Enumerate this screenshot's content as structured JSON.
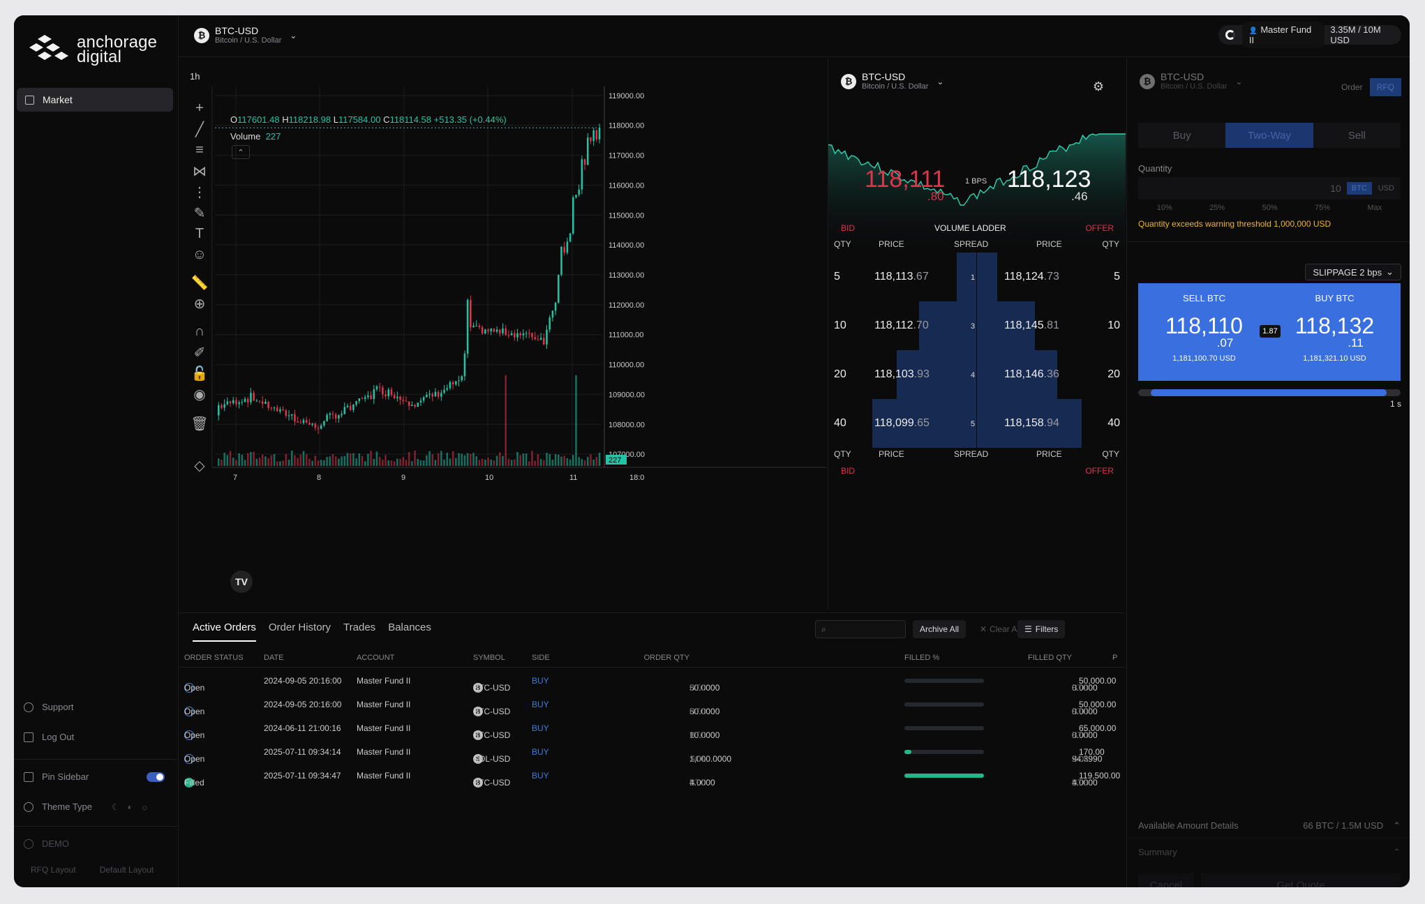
{
  "brand": {
    "name_line1": "anchorage",
    "name_line2": "digital"
  },
  "sidebar": {
    "market": "Market",
    "support": "Support",
    "logout": "Log Out",
    "pin": "Pin Sidebar",
    "theme": "Theme Type",
    "demo": "DEMO",
    "rfq_layout": "RFQ Layout",
    "default_layout": "Default Layout"
  },
  "topbar": {
    "symbol": "BTC-USD",
    "subtitle": "Bitcoin / U.S. Dollar",
    "account": "Master Fund II",
    "limit": "3.35M / 10M USD"
  },
  "chart": {
    "timeframe": "1h",
    "ohlc": {
      "o": "117601.48",
      "h": "118218.98",
      "l": "117584.00",
      "c": "118114.58",
      "chg": "+513.35 (+0.44%)"
    },
    "volume_label": "Volume",
    "volume_value": "227",
    "last_volume_badge": "227"
  },
  "chart_data": {
    "type": "candlestick",
    "xlabel": "",
    "ylabel": "",
    "x_ticks": [
      "7",
      "8",
      "9",
      "10",
      "11",
      "18:0"
    ],
    "y_ticks": [
      "119000.00",
      "118000.00",
      "117000.00",
      "116000.00",
      "115000.00",
      "114000.00",
      "113000.00",
      "112000.00",
      "111000.00",
      "110000.00",
      "109000.00",
      "108000.00",
      "107000.00"
    ],
    "ylim": [
      106700,
      119300
    ],
    "segments": [
      {
        "from": 108600,
        "to": 108900,
        "n": 12
      },
      {
        "from": 108900,
        "to": 107900,
        "n": 22
      },
      {
        "from": 107900,
        "to": 108600,
        "n": 12
      },
      {
        "from": 108600,
        "to": 109200,
        "n": 10
      },
      {
        "from": 109200,
        "to": 108700,
        "n": 12
      },
      {
        "from": 108700,
        "to": 109500,
        "n": 16
      },
      {
        "from": 109500,
        "to": 111200,
        "n": 2
      },
      {
        "from": 111200,
        "to": 111000,
        "n": 20
      },
      {
        "from": 111000,
        "to": 110800,
        "n": 6
      },
      {
        "from": 110800,
        "to": 113500,
        "n": 6
      },
      {
        "from": 113500,
        "to": 117000,
        "n": 8
      },
      {
        "from": 117000,
        "to": 118100,
        "n": 5
      }
    ],
    "volume_spikes": [
      {
        "i": 98,
        "v": 1.0
      },
      {
        "i": 122,
        "v": 1.0
      },
      {
        "i": 134,
        "v": 0.8
      },
      {
        "i": 148,
        "v": 0.75
      },
      {
        "i": 152,
        "v": 0.35
      },
      {
        "i": 164,
        "v": 0.3
      }
    ]
  },
  "ladder": {
    "symbol": "BTC-USD",
    "subtitle": "Bitcoin / U.S. Dollar",
    "best_bid": "118,111",
    "best_bid_frac": ".80",
    "best_offer": "118,123",
    "best_offer_frac": ".46",
    "bps": "1 BPS",
    "title": "VOLUME LADDER",
    "bid": "BID",
    "offer": "OFFER",
    "cols": {
      "qty": "QTY",
      "price": "PRICE",
      "spread": "SPREAD"
    },
    "rows": [
      {
        "qty": "5",
        "bid": "118,113",
        "bid_frac": ".67",
        "spread": "1",
        "offer": "118,124",
        "offer_frac": ".73",
        "oqty": "5",
        "w": 0.18
      },
      {
        "qty": "10",
        "bid": "118,112",
        "bid_frac": ".70",
        "spread": "3",
        "offer": "118,145",
        "offer_frac": ".81",
        "oqty": "10",
        "w": 0.52
      },
      {
        "qty": "20",
        "bid": "118,103",
        "bid_frac": ".93",
        "spread": "4",
        "offer": "118,146",
        "offer_frac": ".36",
        "oqty": "20",
        "w": 0.72
      },
      {
        "qty": "40",
        "bid": "118,099",
        "bid_frac": ".65",
        "spread": "5",
        "offer": "118,158",
        "offer_frac": ".94",
        "oqty": "40",
        "w": 0.94
      }
    ]
  },
  "rfq": {
    "symbol": "BTC-USD",
    "subtitle": "Bitcoin / U.S. Dollar",
    "tab_order": "Order",
    "tab_rfq": "RFQ",
    "side_buy": "Buy",
    "side_two": "Two-Way",
    "side_sell": "Sell",
    "qty_label": "Quantity",
    "qty_value": "10",
    "unit_btc": "BTC",
    "unit_usd": "USD",
    "pcts": [
      "10%",
      "25%",
      "50%",
      "75%",
      "Max"
    ],
    "warning": "Quantity exceeds warning threshold 1,000,000 USD",
    "slippage": "SLIPPAGE 2 bps",
    "sell": {
      "label": "SELL BTC",
      "price": "118,110",
      "frac": ".07",
      "usd": "1,181,100.70 USD"
    },
    "buy": {
      "label": "BUY BTC",
      "price": "118,132",
      "frac": ".11",
      "usd": "1,181,321.10 USD"
    },
    "spread": "1.87",
    "timer": "1 s",
    "progress": 0.95,
    "available_label": "Available Amount Details",
    "available_value": "66 BTC / 1.5M USD",
    "summary": "Summary",
    "cancel": "Cancel",
    "get_quote": "Get Quote"
  },
  "orders": {
    "tabs": [
      "Active Orders",
      "Order History",
      "Trades",
      "Balances"
    ],
    "archive": "Archive All",
    "clear": "Clear All",
    "filters": "Filters",
    "headers": {
      "status": "ORDER STATUS",
      "date": "DATE",
      "account": "ACCOUNT",
      "symbol": "SYMBOL",
      "side": "SIDE",
      "qty": "ORDER QTY",
      "filled_pct": "FILLED %",
      "filled_qty": "FILLED QTY",
      "price": "P"
    },
    "rows": [
      {
        "status": "Open",
        "date": "2024-09-05 20:16:00",
        "account": "Master Fund II",
        "symbol": "BTC-USD",
        "coin": "B",
        "side": "BUY",
        "qty": "50.0000",
        "unit": "BTC",
        "fill": 0,
        "filled": "0.0000",
        "funit": "BTC",
        "price": "50,000.00"
      },
      {
        "status": "Open",
        "date": "2024-09-05 20:16:00",
        "account": "Master Fund II",
        "symbol": "BTC-USD",
        "coin": "B",
        "side": "BUY",
        "qty": "50.0000",
        "unit": "BTC",
        "fill": 0,
        "filled": "0.0000",
        "funit": "BTC",
        "price": "50,000.00"
      },
      {
        "status": "Open",
        "date": "2024-06-11 21:00:16",
        "account": "Master Fund II",
        "symbol": "BTC-USD",
        "coin": "B",
        "side": "BUY",
        "qty": "10.0000",
        "unit": "BTC",
        "fill": 0,
        "filled": "0.0000",
        "funit": "BTC",
        "price": "65,000.00"
      },
      {
        "status": "Open",
        "date": "2025-07-11 09:34:14",
        "account": "Master Fund II",
        "symbol": "SOL-USD",
        "coin": "S",
        "side": "BUY",
        "qty": "1,000.0000",
        "unit": "SOL",
        "fill": 0.09,
        "filled": "94.3990",
        "funit": "SOL",
        "price": "170.00"
      },
      {
        "status": "Filled",
        "date": "2025-07-11 09:34:47",
        "account": "Master Fund II",
        "symbol": "BTC-USD",
        "coin": "B",
        "side": "BUY",
        "qty": "4.0000",
        "unit": "BTC",
        "fill": 1,
        "filled": "4.0000",
        "funit": "BTC",
        "price": "119,500.00"
      }
    ]
  },
  "colors": {
    "up": "#22c4a4",
    "down": "#e0344b",
    "accent": "#3a6fe0"
  }
}
